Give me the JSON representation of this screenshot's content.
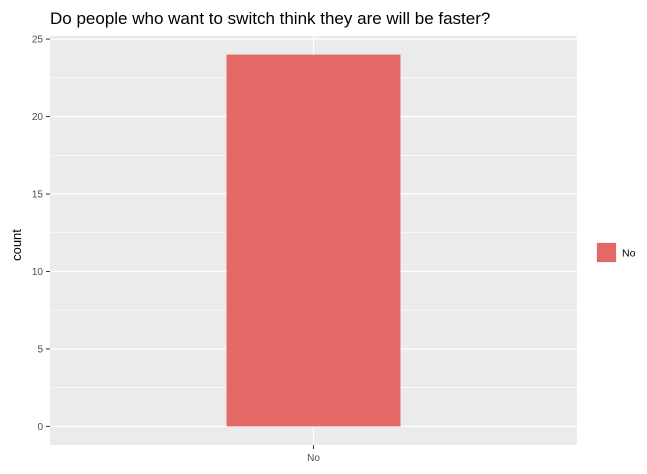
{
  "chart_data": {
    "type": "bar",
    "title": "Do people who want to switch think they are will be faster?",
    "xlabel": "",
    "ylabel": "count",
    "categories": [
      "No"
    ],
    "values": [
      24
    ],
    "ylim": [
      -1.2,
      25.2
    ],
    "yticks": [
      0,
      5,
      10,
      15,
      20,
      25
    ],
    "grid": true,
    "legend": {
      "position": "right",
      "entries": [
        {
          "label": "No",
          "color": "#e46866"
        }
      ]
    },
    "colors": {
      "bar": "#e46866",
      "panel": "#ebebeb",
      "grid": "#ffffff"
    }
  }
}
